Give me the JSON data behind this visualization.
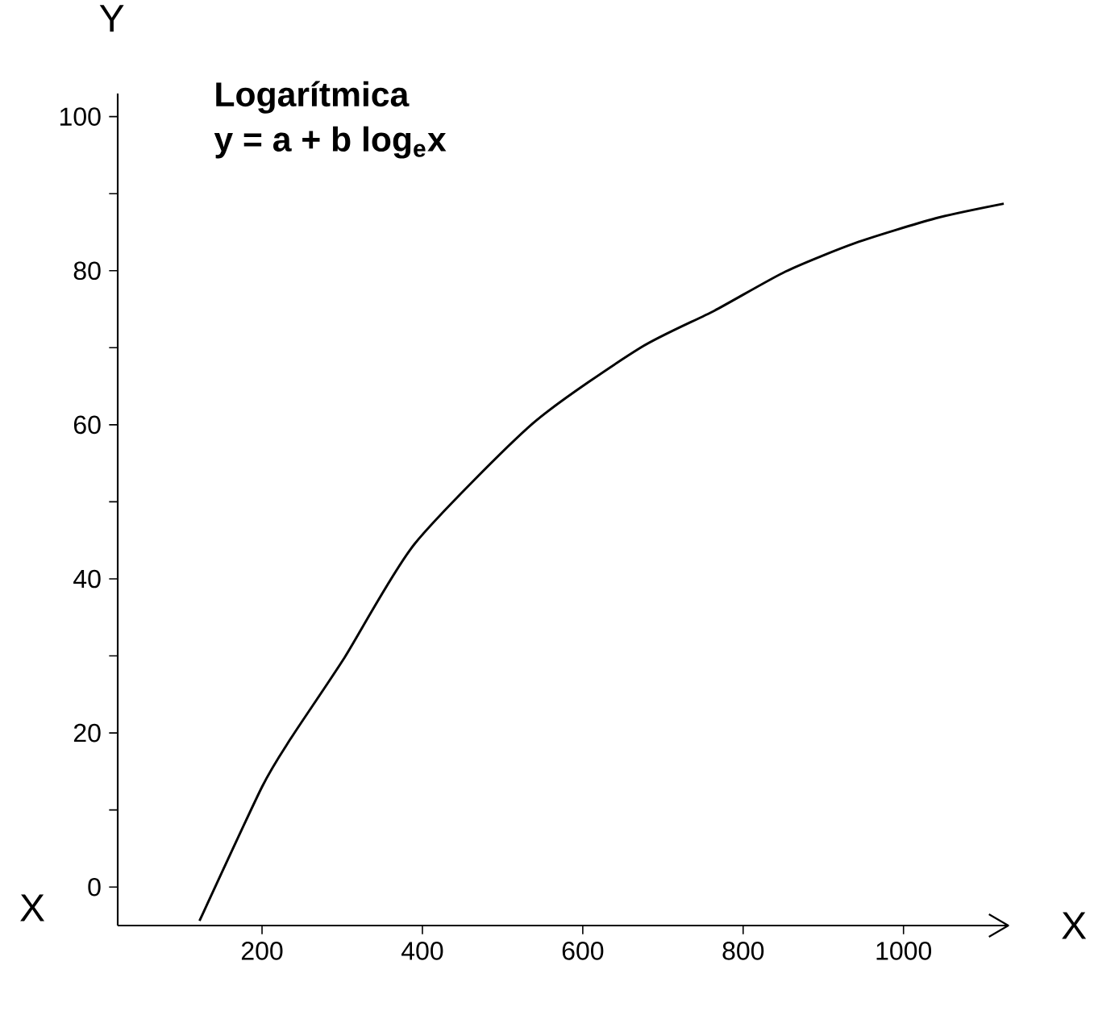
{
  "chart_data": {
    "type": "line",
    "title": "Logarítmica",
    "subtitle": "y = a + b log$_{e}$x",
    "xlabel": "X",
    "ylabel": "Y",
    "annotations": [
      "X"
    ],
    "x": [
      122,
      200,
      236,
      303,
      390,
      538,
      672,
      764,
      853,
      940,
      1040,
      1125
    ],
    "series": [
      {
        "color": "#000000",
        "values": [
          -4.4,
          13,
          19.3,
          29.8,
          44.5,
          60.2,
          70,
          74.8,
          79.9,
          83.6,
          86.8,
          88.7
        ]
      }
    ],
    "xlim": [
      20,
      1130
    ],
    "ylim": [
      -5,
      103
    ],
    "xticks": [
      200,
      400,
      600,
      800,
      1000
    ],
    "yticks": [
      0,
      {
        "value": 10,
        "label": null
      },
      20,
      {
        "value": 30,
        "label": null
      },
      40,
      {
        "value": 50,
        "label": null
      },
      60,
      {
        "value": 70,
        "label": null
      },
      80,
      {
        "value": 90,
        "label": null
      },
      100
    ],
    "marker": "none",
    "line_style": "solid"
  }
}
